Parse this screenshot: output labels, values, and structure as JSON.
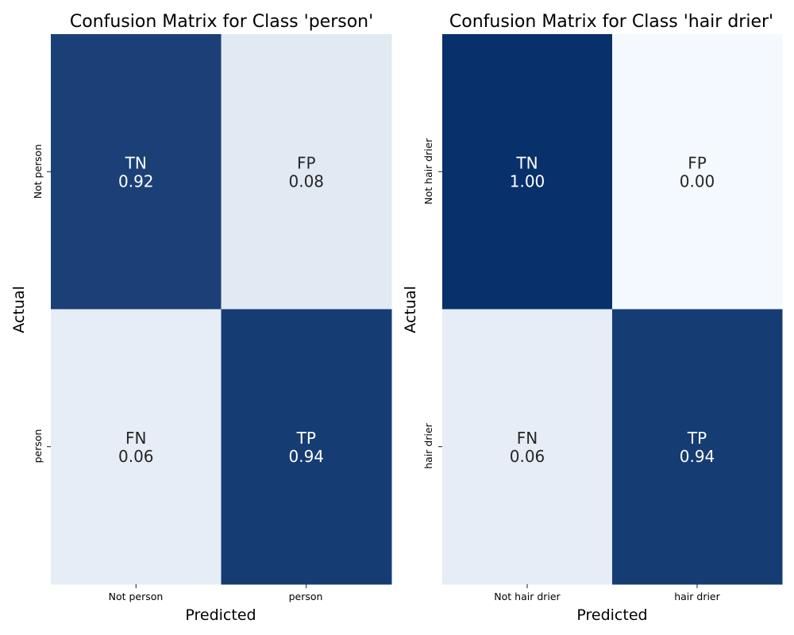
{
  "chart_data": [
    {
      "type": "heatmap",
      "title": "Confusion Matrix for Class 'person'",
      "xlabel": "Predicted",
      "ylabel": "Actual",
      "x_categories": [
        "Not person",
        "person"
      ],
      "y_categories": [
        "Not person",
        "person"
      ],
      "cells": [
        [
          {
            "code": "TN",
            "value": 0.92,
            "display": "0.92"
          },
          {
            "code": "FP",
            "value": 0.08,
            "display": "0.08"
          }
        ],
        [
          {
            "code": "FN",
            "value": 0.06,
            "display": "0.06"
          },
          {
            "code": "TP",
            "value": 0.94,
            "display": "0.94"
          }
        ]
      ],
      "colormap": "Blues",
      "value_range": [
        0,
        1
      ],
      "colorbar": false
    },
    {
      "type": "heatmap",
      "title": "Confusion Matrix for Class 'hair drier'",
      "xlabel": "Predicted",
      "ylabel": "Actual",
      "x_categories": [
        "Not hair drier",
        "hair drier"
      ],
      "y_categories": [
        "Not hair drier",
        "hair drier"
      ],
      "cells": [
        [
          {
            "code": "TN",
            "value": 1.0,
            "display": "1.00"
          },
          {
            "code": "FP",
            "value": 0.0,
            "display": "0.00"
          }
        ],
        [
          {
            "code": "FN",
            "value": 0.06,
            "display": "0.06"
          },
          {
            "code": "TP",
            "value": 0.94,
            "display": "0.94"
          }
        ]
      ],
      "colormap": "Blues",
      "value_range": [
        0,
        1
      ],
      "colorbar": false
    }
  ],
  "colors": {
    "low": "#f4f9ff",
    "high": "#08306b",
    "text_on_dark": "#ffffff",
    "text_on_light": "#262626"
  }
}
